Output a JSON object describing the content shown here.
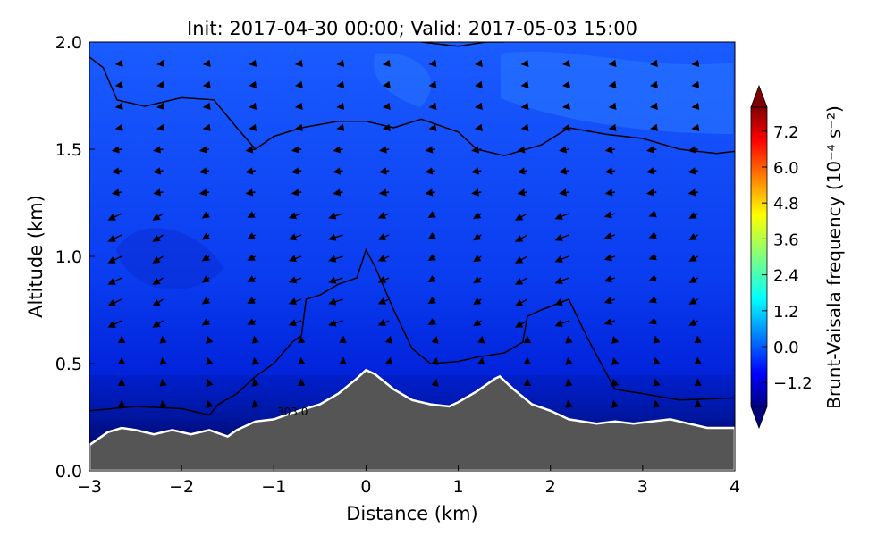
{
  "chart_data": {
    "type": "contour",
    "title": "Init: 2017-04-30 00:00; Valid: 2017-05-03 15:00",
    "xlabel": "Distance (km)",
    "ylabel": "Altitude (km)",
    "xlim": [
      -3,
      4
    ],
    "ylim": [
      0,
      2
    ],
    "xticks": [
      -3,
      -2,
      -1,
      0,
      1,
      2,
      3,
      4
    ],
    "xtick_labels": [
      "−3",
      "−2",
      "−1",
      "0",
      "1",
      "2",
      "3",
      "4"
    ],
    "yticks": [
      0.0,
      0.5,
      1.0,
      1.5,
      2.0
    ],
    "ytick_labels": [
      "0.0",
      "0.5",
      "1.0",
      "1.5",
      "2.0"
    ],
    "colorbar": {
      "label": "Brunt-Vaisala frequency (10⁻⁴ s⁻²)",
      "range": [
        -2.0,
        8.0
      ],
      "ticks": [
        -1.2,
        0.0,
        1.2,
        2.4,
        3.6,
        4.8,
        6.0,
        7.2
      ],
      "tick_labels": [
        "−1.2",
        "0.0",
        "1.2",
        "2.4",
        "3.6",
        "4.8",
        "6.0",
        "7.2"
      ],
      "colormap": "jet",
      "extend": "both"
    },
    "contour_label": "303.0",
    "terrain": {
      "x": [
        -3.0,
        -2.8,
        -2.65,
        -2.5,
        -2.3,
        -2.1,
        -1.9,
        -1.7,
        -1.5,
        -1.4,
        -1.2,
        -1.0,
        -0.8,
        -0.5,
        -0.3,
        -0.1,
        0.0,
        0.1,
        0.3,
        0.5,
        0.7,
        0.9,
        1.0,
        1.2,
        1.4,
        1.45,
        1.6,
        1.8,
        2.0,
        2.2,
        2.5,
        2.7,
        2.9,
        3.1,
        3.3,
        3.5,
        3.7,
        4.0
      ],
      "y": [
        0.12,
        0.18,
        0.2,
        0.19,
        0.17,
        0.19,
        0.17,
        0.19,
        0.16,
        0.19,
        0.23,
        0.24,
        0.27,
        0.31,
        0.36,
        0.43,
        0.47,
        0.45,
        0.38,
        0.33,
        0.31,
        0.3,
        0.32,
        0.37,
        0.43,
        0.44,
        0.38,
        0.31,
        0.28,
        0.24,
        0.22,
        0.23,
        0.22,
        0.23,
        0.24,
        0.22,
        0.2,
        0.2
      ]
    },
    "theta_contours": [
      {
        "x": [
          -3.0,
          -2.85,
          -2.7,
          -2.4,
          -2.0,
          -1.65,
          -1.4,
          -1.2,
          -1.0,
          -0.7,
          -0.3,
          0.0,
          0.3,
          0.6,
          1.0,
          1.2,
          1.5,
          1.9,
          2.2,
          2.6,
          3.0,
          3.4,
          3.8,
          4.0
        ],
        "y": [
          1.93,
          1.88,
          1.73,
          1.7,
          1.74,
          1.73,
          1.6,
          1.5,
          1.56,
          1.6,
          1.63,
          1.63,
          1.6,
          1.64,
          1.58,
          1.5,
          1.47,
          1.52,
          1.6,
          1.57,
          1.55,
          1.5,
          1.48,
          1.49
        ]
      },
      {
        "x": [
          0.6,
          1.0,
          1.3,
          1.5
        ],
        "y": [
          2.0,
          1.98,
          2.0,
          2.0
        ]
      },
      {
        "x": [
          -3.0,
          -2.5,
          -2.0,
          -1.8,
          -1.7,
          -1.6,
          -1.4,
          -1.35,
          -1.2,
          -1.0,
          -0.8,
          -0.7,
          -0.65,
          -0.5,
          -0.3,
          -0.1,
          0.0,
          0.1,
          0.3,
          0.5,
          0.7,
          1.0,
          1.2,
          1.5,
          1.7,
          1.75,
          1.9,
          2.2,
          2.4,
          2.7,
          3.0,
          3.4,
          4.0
        ],
        "y": [
          0.28,
          0.3,
          0.29,
          0.27,
          0.26,
          0.31,
          0.36,
          0.38,
          0.44,
          0.5,
          0.6,
          0.63,
          0.8,
          0.82,
          0.87,
          0.9,
          1.03,
          0.95,
          0.75,
          0.57,
          0.5,
          0.51,
          0.53,
          0.55,
          0.6,
          0.72,
          0.75,
          0.8,
          0.62,
          0.38,
          0.36,
          0.33,
          0.34
        ]
      }
    ]
  }
}
